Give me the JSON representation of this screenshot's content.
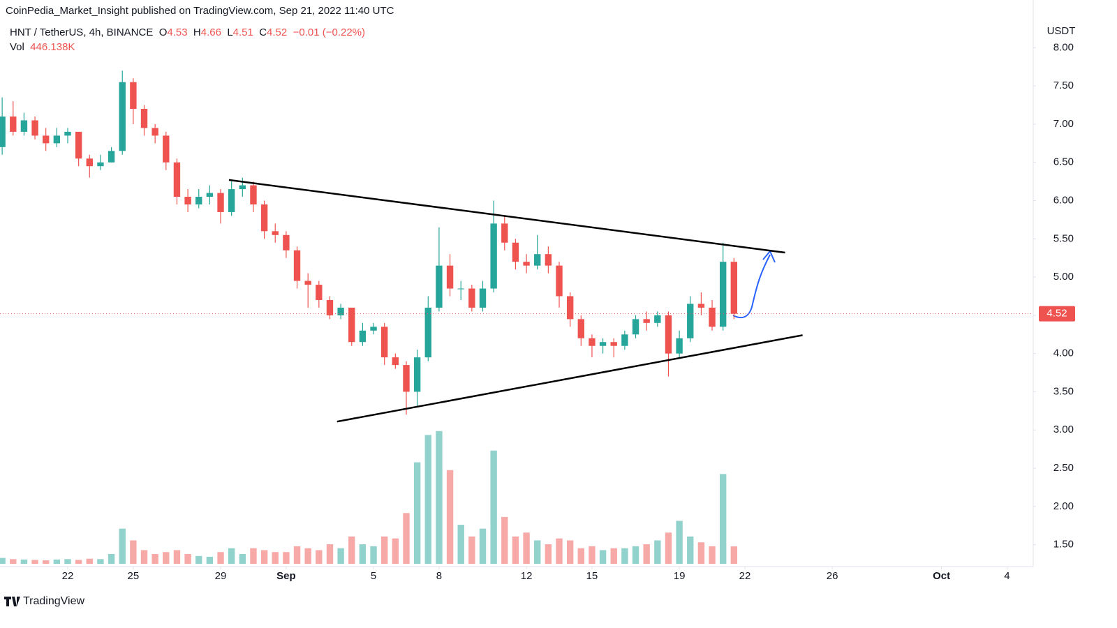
{
  "header": {
    "publisher": "CoinPedia_Market_Insight published on TradingView.com, Sep 21, 2022 11:40 UTC",
    "symbol": "HNT / TetherUS, 4h, BINANCE",
    "ohlc_labels": [
      "O",
      "H",
      "L",
      "C"
    ],
    "ohlc": [
      4.53,
      4.66,
      4.51,
      4.52
    ],
    "change": {
      "value": -0.01,
      "label": "−0.01"
    },
    "change_pct": {
      "value": -0.22,
      "label": "(−0.22%)"
    },
    "volume_label": "Vol",
    "volume_value": "446.138K"
  },
  "footer": {
    "brand": "TradingView"
  },
  "chart_data": {
    "type": "candlestick",
    "currency": "USDT",
    "up_color": "#26a69a",
    "down_color": "#ef5350",
    "grid": false,
    "x": [
      -1,
      -0.5,
      0,
      0.5,
      1,
      1.5,
      2,
      2.5,
      3,
      3.5,
      4,
      4.5,
      5,
      5.5,
      6,
      6.5,
      7,
      7.5,
      8,
      8.5,
      9,
      9.5,
      10,
      10.5,
      11,
      11.5,
      12,
      12.5,
      13,
      13.5,
      14,
      14.5,
      15,
      15.5,
      16,
      16.5,
      17,
      17.5,
      18,
      18.5,
      19,
      19.5,
      20,
      20.5,
      21,
      21.5,
      22,
      22.5,
      23,
      23.5,
      24,
      24.5,
      25,
      25.5,
      26,
      26.5,
      27,
      27.5,
      28,
      28.5,
      29,
      29.5,
      30,
      30.5,
      31,
      31.5,
      32,
      32.5
    ],
    "open": [
      6.7,
      7.1,
      6.9,
      7.05,
      6.85,
      6.75,
      6.85,
      6.9,
      6.55,
      6.45,
      6.5,
      6.65,
      7.55,
      7.2,
      6.95,
      6.85,
      6.5,
      6.05,
      5.95,
      6.05,
      6.1,
      5.85,
      6.15,
      6.2,
      5.95,
      5.6,
      5.55,
      5.35,
      4.95,
      4.9,
      4.7,
      4.5,
      4.6,
      4.15,
      4.3,
      4.35,
      3.95,
      3.85,
      3.5,
      3.95,
      4.6,
      5.15,
      4.85,
      4.85,
      4.6,
      4.85,
      5.7,
      5.45,
      5.2,
      5.15,
      5.3,
      5.15,
      4.75,
      4.45,
      4.2,
      4.1,
      4.15,
      4.1,
      4.25,
      4.45,
      4.4,
      4.5,
      4.0,
      4.2,
      4.65,
      4.6,
      4.35,
      5.2
    ],
    "high": [
      7.35,
      7.3,
      7.15,
      7.1,
      6.95,
      6.95,
      6.95,
      6.9,
      6.6,
      6.6,
      6.7,
      7.7,
      7.6,
      7.25,
      7.0,
      6.9,
      6.55,
      6.15,
      6.15,
      6.2,
      6.15,
      6.25,
      6.3,
      6.25,
      6.0,
      5.7,
      5.6,
      5.4,
      5.05,
      4.95,
      4.75,
      4.65,
      4.6,
      4.4,
      4.4,
      4.4,
      4.0,
      3.9,
      4.05,
      4.75,
      5.65,
      5.3,
      4.95,
      4.9,
      4.95,
      6.0,
      5.8,
      5.5,
      5.3,
      5.55,
      5.4,
      5.2,
      4.8,
      4.5,
      4.25,
      4.2,
      4.2,
      4.3,
      4.5,
      4.55,
      4.55,
      4.55,
      4.3,
      4.75,
      4.8,
      4.7,
      5.45,
      5.25
    ],
    "low": [
      6.6,
      6.85,
      6.85,
      6.8,
      6.65,
      6.7,
      6.75,
      6.45,
      6.3,
      6.4,
      6.5,
      6.6,
      7.0,
      6.85,
      6.75,
      6.4,
      5.95,
      5.85,
      5.9,
      5.95,
      5.7,
      5.8,
      6.05,
      5.85,
      5.5,
      5.45,
      5.25,
      4.85,
      4.6,
      4.6,
      4.45,
      4.45,
      4.1,
      4.1,
      4.25,
      3.85,
      3.8,
      3.2,
      3.3,
      3.9,
      4.55,
      4.75,
      4.7,
      4.55,
      4.55,
      4.8,
      5.35,
      5.1,
      5.05,
      5.1,
      5.05,
      4.6,
      4.35,
      4.1,
      3.95,
      4.0,
      3.95,
      4.05,
      4.2,
      4.3,
      4.35,
      3.7,
      3.95,
      4.15,
      4.5,
      4.3,
      4.3,
      4.45
    ],
    "close": [
      7.1,
      6.9,
      7.05,
      6.85,
      6.75,
      6.85,
      6.9,
      6.55,
      6.45,
      6.5,
      6.65,
      7.55,
      7.2,
      6.95,
      6.85,
      6.5,
      6.05,
      5.95,
      6.05,
      6.1,
      5.85,
      6.15,
      6.2,
      5.95,
      5.6,
      5.55,
      5.35,
      4.95,
      4.9,
      4.7,
      4.5,
      4.6,
      4.15,
      4.3,
      4.35,
      3.95,
      3.85,
      3.5,
      3.95,
      4.6,
      5.15,
      4.85,
      4.85,
      4.6,
      4.85,
      5.7,
      5.45,
      5.2,
      5.15,
      5.3,
      5.15,
      4.75,
      4.45,
      4.2,
      4.1,
      4.15,
      4.1,
      4.25,
      4.45,
      4.4,
      4.5,
      4.0,
      4.2,
      4.65,
      4.6,
      4.35,
      5.2,
      4.52
    ],
    "volume": [
      150,
      120,
      110,
      100,
      90,
      110,
      120,
      100,
      130,
      120,
      250,
      900,
      600,
      350,
      250,
      300,
      350,
      250,
      200,
      180,
      300,
      400,
      250,
      400,
      350,
      300,
      300,
      450,
      400,
      350,
      500,
      400,
      700,
      500,
      450,
      700,
      650,
      1300,
      2600,
      3300,
      3400,
      2400,
      1000,
      700,
      900,
      2900,
      1200,
      700,
      800,
      600,
      500,
      650,
      600,
      400,
      450,
      350,
      400,
      400,
      450,
      500,
      600,
      800,
      1100,
      700,
      550,
      450,
      2300,
      446.138
    ],
    "vlim": [
      0,
      3700
    ],
    "last_price": {
      "value": 4.52,
      "label": "4.52"
    },
    "trendlines": [
      {
        "x": [
          9.38,
          34.84
        ],
        "y": [
          6.27,
          5.32
        ]
      },
      {
        "x": [
          14.33,
          35.64
        ],
        "y": [
          3.11,
          4.24
        ]
      }
    ],
    "xlim": [
      -1.1,
      46.2
    ],
    "xticks": [
      {
        "value": 2,
        "label": "22"
      },
      {
        "value": 5,
        "label": "25"
      },
      {
        "value": 9,
        "label": "29"
      },
      {
        "value": 12,
        "label": "Sep"
      },
      {
        "value": 16,
        "label": "5"
      },
      {
        "value": 19,
        "label": "8"
      },
      {
        "value": 23,
        "label": "12"
      },
      {
        "value": 26,
        "label": "15"
      },
      {
        "value": 30,
        "label": "19"
      },
      {
        "value": 33,
        "label": "22"
      },
      {
        "value": 37,
        "label": "26"
      },
      {
        "value": 42,
        "label": "Oct"
      },
      {
        "value": 45,
        "label": "4"
      }
    ],
    "ylim": [
      1.25,
      8.35
    ],
    "yticks": [
      {
        "value": 8,
        "label": "8.00"
      },
      {
        "value": 7.5,
        "label": "7.50"
      },
      {
        "value": 7,
        "label": "7.00"
      },
      {
        "value": 6.5,
        "label": "6.50"
      },
      {
        "value": 6,
        "label": "6.00"
      },
      {
        "value": 5.5,
        "label": "5.50"
      },
      {
        "value": 5,
        "label": "5.00"
      },
      {
        "value": 4.5,
        "label": "4.50"
      },
      {
        "value": 4,
        "label": "4.00"
      },
      {
        "value": 3.5,
        "label": "3.50"
      },
      {
        "value": 3,
        "label": "3.00"
      },
      {
        "value": 2.5,
        "label": "2.50"
      },
      {
        "value": 2,
        "label": "2.00"
      },
      {
        "value": 1.5,
        "label": "1.50"
      }
    ]
  }
}
